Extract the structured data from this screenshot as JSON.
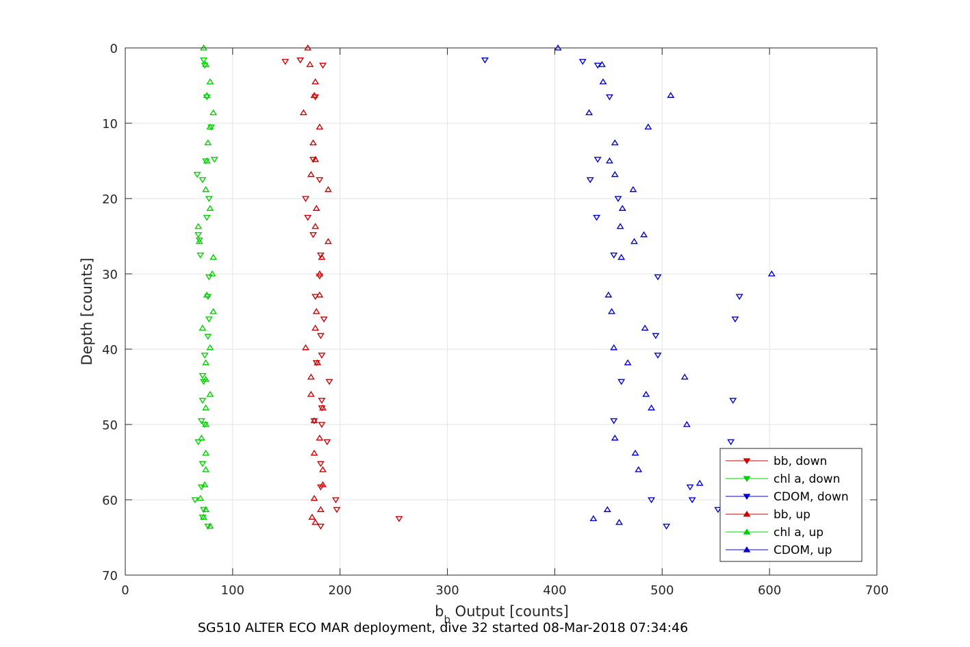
{
  "chart_data": {
    "type": "scatter",
    "xlabel_main": "b",
    "xlabel_sub": "b",
    "xlabel_rest": " Output [counts]",
    "ylabel": "Depth [counts]",
    "caption": "SG510 ALTER ECO MAR deployment, dive 32 started 08-Mar-2018 07:34:46",
    "xlim": [
      0,
      700
    ],
    "ylim": [
      0,
      70
    ],
    "y_reversed": true,
    "xticks": [
      0,
      100,
      200,
      300,
      400,
      500,
      600,
      700
    ],
    "yticks": [
      0,
      10,
      20,
      30,
      40,
      50,
      60,
      70
    ],
    "grid": true,
    "legend_position": "bottom-right",
    "series": [
      {
        "name": "bb, down",
        "color": "#cc0000",
        "marker": "triangle-down",
        "points": [
          [
            149,
            1.8
          ],
          [
            163,
            1.6
          ],
          [
            184,
            2.3
          ],
          [
            177,
            6.5
          ],
          [
            175,
            14.8
          ],
          [
            181,
            17.5
          ],
          [
            168,
            20
          ],
          [
            170,
            22.5
          ],
          [
            175,
            24.8
          ],
          [
            182,
            27.5
          ],
          [
            181,
            30.3
          ],
          [
            177,
            33
          ],
          [
            185,
            36
          ],
          [
            182,
            38.2
          ],
          [
            183,
            40.8
          ],
          [
            178,
            41.8
          ],
          [
            190,
            44.3
          ],
          [
            183,
            46.8
          ],
          [
            183,
            47.8
          ],
          [
            176,
            49.5
          ],
          [
            183,
            50
          ],
          [
            188,
            52.3
          ],
          [
            182,
            55.2
          ],
          [
            182,
            58.3
          ],
          [
            196,
            60
          ],
          [
            197,
            61.3
          ],
          [
            255,
            62.5
          ],
          [
            182,
            63.5
          ]
        ]
      },
      {
        "name": "chl a, down",
        "color": "#00d000",
        "marker": "triangle-down",
        "points": [
          [
            73,
            1.6
          ],
          [
            74,
            2.3
          ],
          [
            76,
            6.5
          ],
          [
            80,
            10.5
          ],
          [
            83,
            14.8
          ],
          [
            75,
            15
          ],
          [
            67,
            16.8
          ],
          [
            72,
            17.5
          ],
          [
            78,
            20
          ],
          [
            76,
            22.5
          ],
          [
            68,
            24.8
          ],
          [
            69,
            25.5
          ],
          [
            70,
            27.5
          ],
          [
            78,
            30.4
          ],
          [
            77,
            33
          ],
          [
            78,
            36
          ],
          [
            77,
            38.3
          ],
          [
            74,
            40.8
          ],
          [
            72,
            43.5
          ],
          [
            73,
            44.3
          ],
          [
            72,
            46.8
          ],
          [
            71,
            49.5
          ],
          [
            74,
            50
          ],
          [
            68,
            52.3
          ],
          [
            72,
            55.2
          ],
          [
            71,
            58.3
          ],
          [
            65,
            60
          ],
          [
            73,
            61.3
          ],
          [
            72,
            62.3
          ],
          [
            77,
            63.5
          ]
        ]
      },
      {
        "name": "CDOM, down",
        "color": "#0000cc",
        "marker": "triangle-down",
        "points": [
          [
            335,
            1.6
          ],
          [
            426,
            1.8
          ],
          [
            440,
            2.3
          ],
          [
            451,
            6.5
          ],
          [
            440,
            14.8
          ],
          [
            433,
            17.5
          ],
          [
            459,
            20
          ],
          [
            439,
            22.5
          ],
          [
            455,
            27.5
          ],
          [
            496,
            30.4
          ],
          [
            572,
            33
          ],
          [
            568,
            36
          ],
          [
            494,
            38.2
          ],
          [
            496,
            40.8
          ],
          [
            462,
            44.3
          ],
          [
            566,
            46.8
          ],
          [
            455,
            49.5
          ],
          [
            564,
            52.3
          ],
          [
            526,
            58.3
          ],
          [
            490,
            60
          ],
          [
            528,
            60
          ],
          [
            552,
            61.3
          ],
          [
            504,
            63.5
          ]
        ]
      },
      {
        "name": "bb, up",
        "color": "#cc0000",
        "marker": "triangle-up",
        "points": [
          [
            170,
            0
          ],
          [
            172,
            2.2
          ],
          [
            177,
            4.5
          ],
          [
            176,
            6.3
          ],
          [
            166,
            8.6
          ],
          [
            181,
            10.5
          ],
          [
            175,
            12.6
          ],
          [
            177,
            14.8
          ],
          [
            173,
            16.8
          ],
          [
            189,
            18.8
          ],
          [
            178,
            21.3
          ],
          [
            177,
            23.7
          ],
          [
            189,
            25.7
          ],
          [
            183,
            27.8
          ],
          [
            181,
            30
          ],
          [
            181,
            32.8
          ],
          [
            178,
            35
          ],
          [
            177,
            37.2
          ],
          [
            168,
            39.8
          ],
          [
            179,
            41.8
          ],
          [
            173,
            43.7
          ],
          [
            173,
            46
          ],
          [
            184,
            47.8
          ],
          [
            176,
            49.5
          ],
          [
            181,
            51.8
          ],
          [
            176,
            53.8
          ],
          [
            184,
            56
          ],
          [
            184,
            58
          ],
          [
            176,
            59.8
          ],
          [
            182,
            61.3
          ],
          [
            174,
            62.3
          ],
          [
            177,
            63
          ]
        ]
      },
      {
        "name": "chl a, up",
        "color": "#00d000",
        "marker": "triangle-up",
        "points": [
          [
            73,
            0
          ],
          [
            75,
            2.2
          ],
          [
            79,
            4.5
          ],
          [
            76,
            6.3
          ],
          [
            82,
            8.6
          ],
          [
            79,
            10.5
          ],
          [
            77,
            12.6
          ],
          [
            76,
            15
          ],
          [
            75,
            18.8
          ],
          [
            79,
            21.3
          ],
          [
            68,
            23.7
          ],
          [
            69,
            25.7
          ],
          [
            82,
            27.8
          ],
          [
            81,
            30
          ],
          [
            76,
            32.8
          ],
          [
            82,
            35
          ],
          [
            72,
            37.2
          ],
          [
            79,
            39.8
          ],
          [
            75,
            41.8
          ],
          [
            75,
            44
          ],
          [
            79,
            46
          ],
          [
            75,
            47.8
          ],
          [
            75,
            50
          ],
          [
            71,
            51.8
          ],
          [
            75,
            53.8
          ],
          [
            75,
            56
          ],
          [
            74,
            58
          ],
          [
            70,
            59.8
          ],
          [
            75,
            61.3
          ],
          [
            73,
            62.3
          ],
          [
            79,
            63.5
          ]
        ]
      },
      {
        "name": "CDOM, up",
        "color": "#0000cc",
        "marker": "triangle-up",
        "points": [
          [
            403,
            0
          ],
          [
            444,
            2.2
          ],
          [
            445,
            4.5
          ],
          [
            508,
            6.3
          ],
          [
            432,
            8.6
          ],
          [
            487,
            10.5
          ],
          [
            456,
            12.6
          ],
          [
            451,
            15
          ],
          [
            456,
            16.8
          ],
          [
            473,
            18.8
          ],
          [
            463,
            21.3
          ],
          [
            461,
            23.7
          ],
          [
            483,
            24.8
          ],
          [
            474,
            25.7
          ],
          [
            462,
            27.8
          ],
          [
            602,
            30
          ],
          [
            450,
            32.8
          ],
          [
            453,
            35
          ],
          [
            484,
            37.2
          ],
          [
            455,
            39.8
          ],
          [
            468,
            41.8
          ],
          [
            521,
            43.7
          ],
          [
            485,
            46
          ],
          [
            490,
            47.8
          ],
          [
            523,
            50
          ],
          [
            456,
            51.8
          ],
          [
            475,
            53.8
          ],
          [
            478,
            56
          ],
          [
            535,
            57.8
          ],
          [
            449,
            61.3
          ],
          [
            436,
            62.5
          ],
          [
            460,
            63
          ]
        ]
      }
    ]
  }
}
